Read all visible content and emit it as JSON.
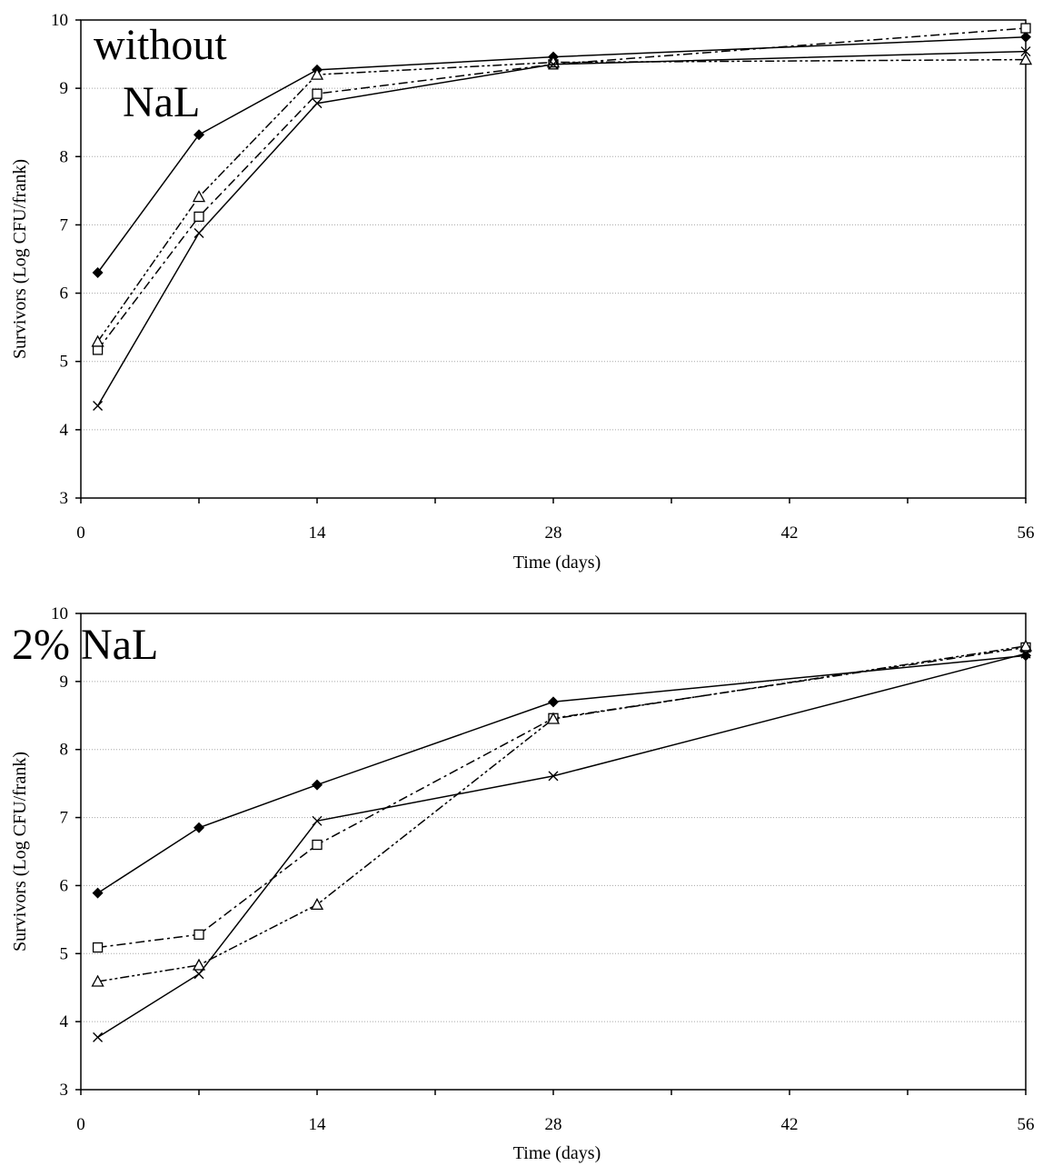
{
  "chart_data": [
    {
      "type": "line",
      "title_lines": [
        "without",
        "NaL"
      ],
      "xlabel": "Time (days)",
      "ylabel": "Survivors (Log CFU/frank)",
      "xlim": [
        0,
        56
      ],
      "ylim": [
        3,
        10
      ],
      "xticks": [
        0,
        14,
        28,
        42,
        56
      ],
      "yticks": [
        3,
        4,
        5,
        6,
        7,
        8,
        9,
        10
      ],
      "grid": true,
      "series": [
        {
          "marker": "diamond",
          "dash": "solid",
          "x": [
            1,
            7,
            14,
            28,
            56
          ],
          "y": [
            6.3,
            8.32,
            9.27,
            9.46,
            9.75
          ]
        },
        {
          "marker": "square",
          "dash": "dashdot",
          "x": [
            1,
            7,
            14,
            28,
            56
          ],
          "y": [
            5.17,
            7.12,
            8.92,
            9.35,
            9.88
          ]
        },
        {
          "marker": "triangle",
          "dash": "dashdotdot",
          "x": [
            1,
            7,
            14,
            28,
            56
          ],
          "y": [
            5.29,
            7.41,
            9.2,
            9.38,
            9.42
          ]
        },
        {
          "marker": "x",
          "dash": "solid",
          "x": [
            1,
            7,
            14,
            28,
            56
          ],
          "y": [
            4.35,
            6.88,
            8.78,
            9.35,
            9.54
          ]
        }
      ]
    },
    {
      "type": "line",
      "title_lines": [
        "2% NaL"
      ],
      "xlabel": "Time (days)",
      "ylabel": "Survivors (Log CFU/frank)",
      "xlim": [
        0,
        56
      ],
      "ylim": [
        3,
        10
      ],
      "xticks": [
        0,
        14,
        28,
        42,
        56
      ],
      "yticks": [
        3,
        4,
        5,
        6,
        7,
        8,
        9,
        10
      ],
      "grid": true,
      "series": [
        {
          "marker": "diamond",
          "dash": "solid",
          "x": [
            1,
            7,
            14,
            28,
            56
          ],
          "y": [
            5.89,
            6.85,
            7.48,
            8.7,
            9.38
          ]
        },
        {
          "marker": "square",
          "dash": "dashdot",
          "x": [
            1,
            7,
            14,
            28,
            56
          ],
          "y": [
            5.09,
            5.28,
            6.6,
            8.46,
            9.5
          ]
        },
        {
          "marker": "triangle",
          "dash": "dashdotdot",
          "x": [
            1,
            7,
            14,
            28,
            56
          ],
          "y": [
            4.59,
            4.83,
            5.72,
            8.45,
            9.52
          ]
        },
        {
          "marker": "x",
          "dash": "solid",
          "x": [
            1,
            7,
            14,
            28,
            56
          ],
          "y": [
            3.77,
            4.7,
            6.95,
            7.61,
            9.41
          ]
        }
      ]
    }
  ]
}
